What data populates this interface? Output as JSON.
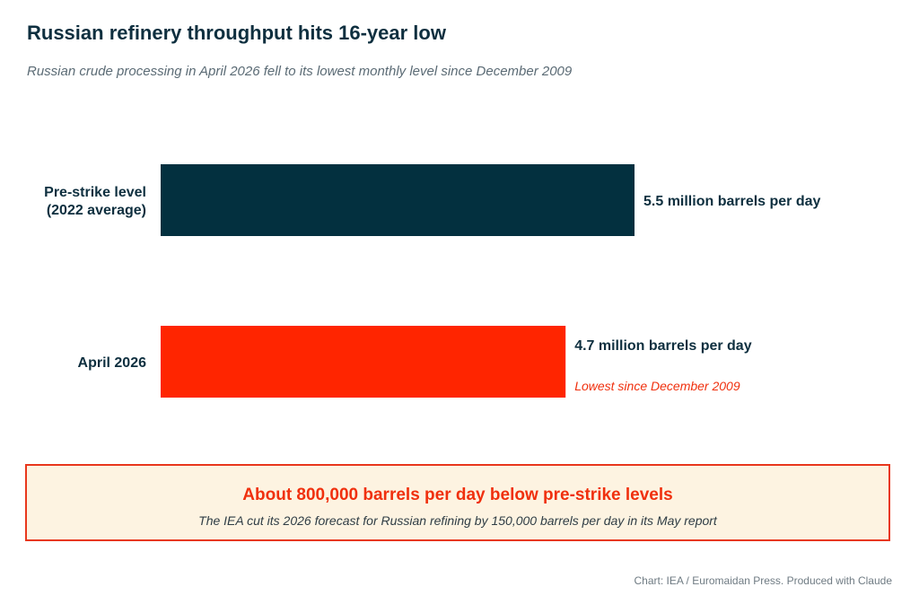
{
  "title": "Russian refinery throughput hits 16-year low",
  "subtitle": "Russian crude processing in April 2026 fell to its lowest monthly level since December 2009",
  "chart_data": {
    "type": "bar",
    "orientation": "horizontal",
    "unit": "million barrels per day",
    "categories": [
      [
        "Pre-strike level",
        "(2022 average)"
      ],
      [
        "April 2026"
      ]
    ],
    "values": [
      5.5,
      4.7
    ],
    "value_labels": [
      "5.5 million barrels per day",
      "4.7 million barrels per day"
    ],
    "annotations": [
      "",
      "Lowest since December 2009"
    ],
    "colors": [
      "#03303f",
      "#ff2500"
    ],
    "annotation_color": "#f0300e",
    "xlim": [
      0,
      5.5
    ],
    "grid": false,
    "legend": "none"
  },
  "callout": {
    "headline": "About 800,000 barrels per day below pre-strike levels",
    "detail": "The IEA cut its 2026 forecast for Russian refining by 150,000 barrels per day in its May report"
  },
  "source": "Chart: IEA / Euromaidan Press. Produced with Claude"
}
